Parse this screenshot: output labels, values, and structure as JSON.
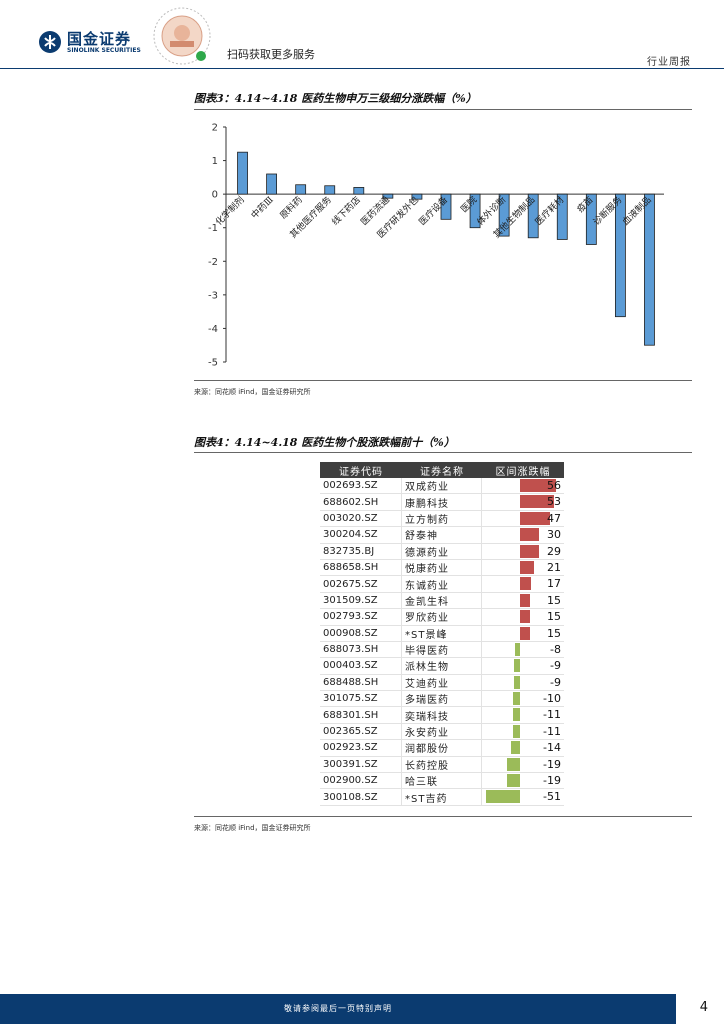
{
  "header": {
    "logo_cn": "国金证券",
    "logo_en": "SINOLINK SECURITIES",
    "scan_text": "扫码获取更多服务",
    "report_type": "行业周报"
  },
  "figure3": {
    "title": "图表3：4.14~4.18 医药生物申万三级细分涨跌幅（%）",
    "source": "来源：同花顺 iFind，国金证券研究所"
  },
  "chart_data": {
    "type": "bar",
    "title": "图表3：4.14~4.18 医药生物申万三级细分涨跌幅（%）",
    "categories": [
      "化学制剂",
      "中药Ⅲ",
      "原料药",
      "其他医疗服务",
      "线下药店",
      "医药流通",
      "医疗研发外包",
      "医疗设备",
      "医院",
      "体外诊断",
      "其他生物制品",
      "医疗耗材",
      "疫苗",
      "诊断服务",
      "血液制品"
    ],
    "values": [
      1.25,
      0.6,
      0.28,
      0.25,
      0.2,
      -0.12,
      -0.15,
      -0.75,
      -1.0,
      -1.25,
      -1.3,
      -1.35,
      -1.5,
      -3.65,
      -4.5
    ],
    "yticks": [
      2,
      1,
      0,
      -1,
      -2,
      -3,
      -4,
      -5
    ],
    "ylim": [
      -5,
      2
    ],
    "bar_color": "#5b9bd5",
    "grid": false
  },
  "figure4": {
    "title": "图表4：4.14~4.18 医药生物个股涨跌幅前十（%）",
    "source": "来源：同花顺 iFind，国金证券研究所",
    "columns": [
      "证券代码",
      "证券名称",
      "区间涨跌幅"
    ],
    "rows": [
      {
        "code": "002693.SZ",
        "name": "双成药业",
        "change": 56
      },
      {
        "code": "688602.SH",
        "name": "康鹏科技",
        "change": 53
      },
      {
        "code": "003020.SZ",
        "name": "立方制药",
        "change": 47
      },
      {
        "code": "300204.SZ",
        "name": "舒泰神",
        "change": 30
      },
      {
        "code": "832735.BJ",
        "name": "德源药业",
        "change": 29
      },
      {
        "code": "688658.SH",
        "name": "悦康药业",
        "change": 21
      },
      {
        "code": "002675.SZ",
        "name": "东诚药业",
        "change": 17
      },
      {
        "code": "301509.SZ",
        "name": "金凯生科",
        "change": 15
      },
      {
        "code": "002793.SZ",
        "name": "罗欣药业",
        "change": 15
      },
      {
        "code": "000908.SZ",
        "name": "*ST景峰",
        "change": 15
      },
      {
        "code": "688073.SH",
        "name": "毕得医药",
        "change": -8
      },
      {
        "code": "000403.SZ",
        "name": "派林生物",
        "change": -9
      },
      {
        "code": "688488.SH",
        "name": "艾迪药业",
        "change": -9
      },
      {
        "code": "301075.SZ",
        "name": "多瑞医药",
        "change": -10
      },
      {
        "code": "688301.SH",
        "name": "奕瑞科技",
        "change": -11
      },
      {
        "code": "002365.SZ",
        "name": "永安药业",
        "change": -11
      },
      {
        "code": "002923.SZ",
        "name": "润都股份",
        "change": -14
      },
      {
        "code": "300391.SZ",
        "name": "长药控股",
        "change": -19
      },
      {
        "code": "002900.SZ",
        "name": "哈三联",
        "change": -19
      },
      {
        "code": "300108.SZ",
        "name": "*ST吉药",
        "change": -51
      }
    ]
  },
  "footer": {
    "disclaimer": "敬请参阅最后一页特别声明",
    "page_number": "4"
  }
}
